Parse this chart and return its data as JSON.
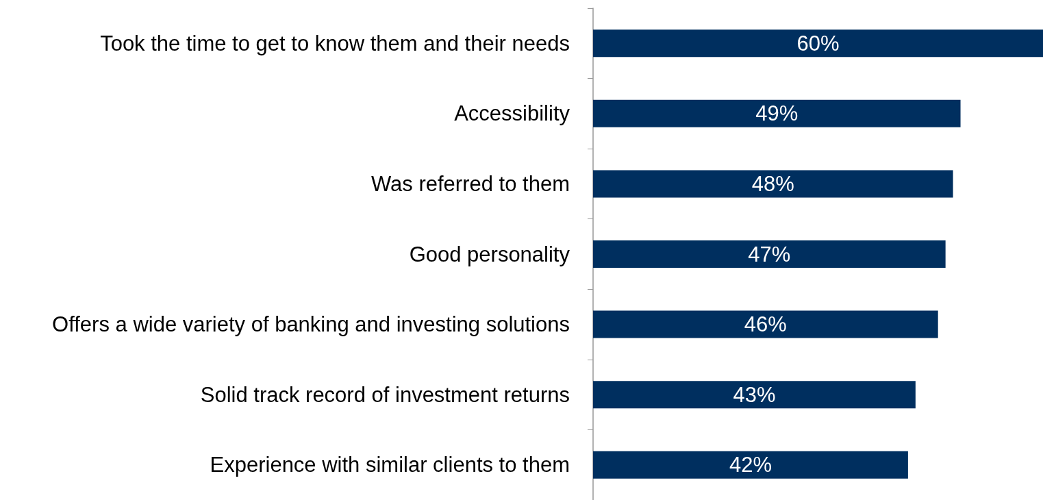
{
  "chart_data": {
    "type": "bar",
    "orientation": "horizontal",
    "categories": [
      "Took the time to get to know them and their needs",
      "Accessibility",
      "Was referred to them",
      "Good personality",
      "Offers a wide variety of banking and investing solutions",
      "Solid track record of investment returns",
      "Experience with similar clients to them"
    ],
    "values": [
      60,
      49,
      48,
      47,
      46,
      43,
      42
    ],
    "value_labels": [
      "60%",
      "49%",
      "48%",
      "47%",
      "46%",
      "43%",
      "42%"
    ],
    "color": "#002f5f"
  }
}
